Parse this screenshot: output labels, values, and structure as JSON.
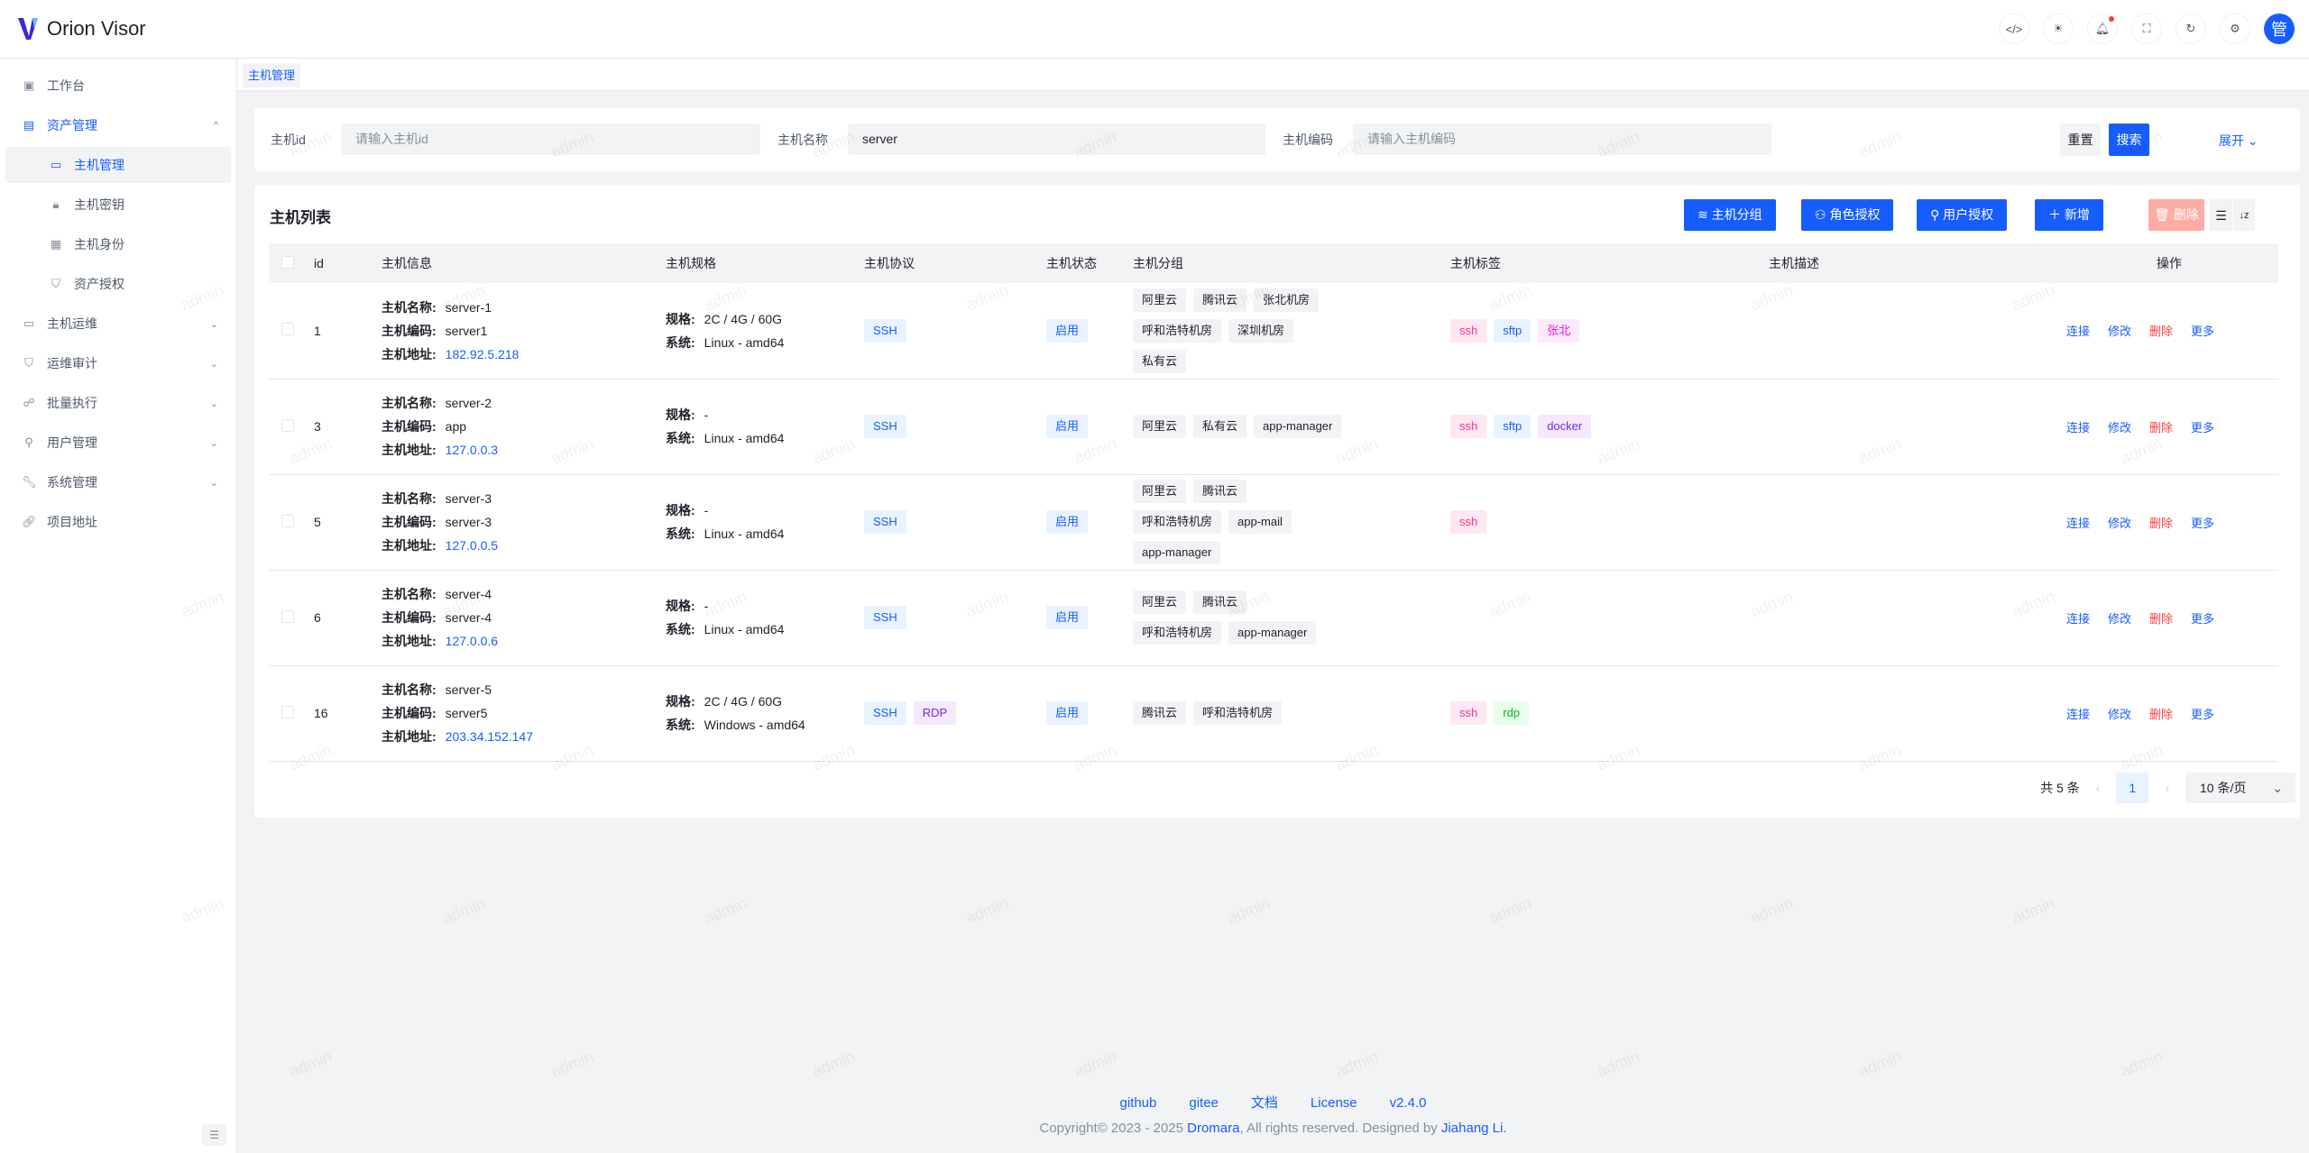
{
  "header": {
    "app_title": "Orion Visor",
    "avatar_text": "管",
    "icons": [
      "code-icon",
      "sun-icon",
      "bell-icon",
      "fullscreen-icon",
      "refresh-icon",
      "gear-icon"
    ],
    "has_notification": true
  },
  "sidebar": {
    "items": [
      {
        "label": "工作台",
        "icon": "dashboard-icon",
        "type": "top"
      },
      {
        "label": "资产管理",
        "icon": "database-icon",
        "type": "open",
        "chevron": "^"
      },
      {
        "label": "主机管理",
        "icon": "desktop-icon",
        "type": "active"
      },
      {
        "label": "主机密钥",
        "icon": "lock-icon",
        "type": "sub"
      },
      {
        "label": "主机身份",
        "icon": "id-card-icon",
        "type": "sub"
      },
      {
        "label": "资产授权",
        "icon": "shield-check-icon",
        "type": "sub"
      },
      {
        "label": "主机运维",
        "icon": "desktop-icon",
        "type": "top",
        "chevron": "⌄"
      },
      {
        "label": "运维审计",
        "icon": "shield-icon",
        "type": "top",
        "chevron": "⌄"
      },
      {
        "label": "批量执行",
        "icon": "cluster-icon",
        "type": "top",
        "chevron": "⌄"
      },
      {
        "label": "用户管理",
        "icon": "user-icon",
        "type": "top",
        "chevron": "⌄"
      },
      {
        "label": "系统管理",
        "icon": "wrench-icon",
        "type": "top",
        "chevron": "⌄"
      },
      {
        "label": "项目地址",
        "icon": "link-icon",
        "type": "top"
      }
    ]
  },
  "tab": {
    "label": "主机管理"
  },
  "search": {
    "id_label": "主机id",
    "id_placeholder": "请输入主机id",
    "name_label": "主机名称",
    "name_value": "server",
    "code_label": "主机编码",
    "code_placeholder": "请输入主机编码",
    "reset": "重置",
    "search": "搜索",
    "expand": "展开"
  },
  "table": {
    "title": "主机列表",
    "buttons": {
      "group": "主机分组",
      "role": "角色授权",
      "user": "用户授权",
      "add": "新增",
      "delete": "删除"
    },
    "columns": [
      "id",
      "主机信息",
      "主机规格",
      "主机协议",
      "主机状态",
      "主机分组",
      "主机标签",
      "主机描述",
      "操作"
    ],
    "info_labels": {
      "name": "主机名称:",
      "code": "主机编码:",
      "address": "主机地址:",
      "spec": "规格:",
      "os": "系统:"
    },
    "rows": [
      {
        "id": "1",
        "name": "server-1",
        "code": "server1",
        "address": "182.92.5.218",
        "spec": "2C / 4G / 60G",
        "os": "Linux - amd64",
        "protocols": [
          "SSH"
        ],
        "status": "启用",
        "groups": [
          "阿里云",
          "腾讯云",
          "张北机房",
          "呼和浩特机房",
          "深圳机房",
          "私有云"
        ],
        "tags": [
          {
            "text": "ssh",
            "color": "#f5319d",
            "bg": "#ffe8f1"
          },
          {
            "text": "sftp",
            "color": "#165dff",
            "bg": "#e8f3ff"
          },
          {
            "text": "张北",
            "color": "#d91ad9",
            "bg": "#ffe8fb"
          }
        ],
        "description": ""
      },
      {
        "id": "3",
        "name": "server-2",
        "code": "app",
        "address": "127.0.0.3",
        "spec": "-",
        "os": "Linux - amd64",
        "protocols": [
          "SSH"
        ],
        "status": "启用",
        "groups": [
          "阿里云",
          "私有云",
          "app-manager"
        ],
        "tags": [
          {
            "text": "ssh",
            "color": "#f5319d",
            "bg": "#ffe8f1"
          },
          {
            "text": "sftp",
            "color": "#165dff",
            "bg": "#e8f3ff"
          },
          {
            "text": "docker",
            "color": "#722ed1",
            "bg": "#f5e8ff"
          }
        ],
        "description": ""
      },
      {
        "id": "5",
        "name": "server-3",
        "code": "server-3",
        "address": "127.0.0.5",
        "spec": "-",
        "os": "Linux - amd64",
        "protocols": [
          "SSH"
        ],
        "status": "启用",
        "groups": [
          "阿里云",
          "腾讯云",
          "呼和浩特机房",
          "app-mail",
          "app-manager"
        ],
        "tags": [
          {
            "text": "ssh",
            "color": "#f5319d",
            "bg": "#ffe8f1"
          }
        ],
        "description": ""
      },
      {
        "id": "6",
        "name": "server-4",
        "code": "server-4",
        "address": "127.0.0.6",
        "spec": "-",
        "os": "Linux - amd64",
        "protocols": [
          "SSH"
        ],
        "status": "启用",
        "groups": [
          "阿里云",
          "腾讯云",
          "呼和浩特机房",
          "app-manager"
        ],
        "tags": [],
        "description": ""
      },
      {
        "id": "16",
        "name": "server-5",
        "code": "server5",
        "address": "203.34.152.147",
        "spec": "2C / 4G / 60G",
        "os": "Windows - amd64",
        "protocols": [
          "SSH",
          "RDP"
        ],
        "status": "启用",
        "groups": [
          "腾讯云",
          "呼和浩特机房"
        ],
        "tags": [
          {
            "text": "ssh",
            "color": "#f5319d",
            "bg": "#ffe8f1"
          },
          {
            "text": "rdp",
            "color": "#00b42a",
            "bg": "#e8ffea"
          }
        ],
        "description": ""
      }
    ],
    "actions": {
      "connect": "连接",
      "edit": "修改",
      "delete": "删除",
      "more": "更多"
    }
  },
  "pagination": {
    "total": "共 5 条",
    "current": "1",
    "page_size": "10 条/页"
  },
  "footer": {
    "links": [
      "github",
      "gitee",
      "文档",
      "License",
      "v2.4.0"
    ],
    "copy_prefix": "Copyright© 2023 - 2025 ",
    "org": "Dromara",
    "copy_mid": ", All rights reserved. Designed by ",
    "author": "Jiahang Li."
  },
  "watermark": "admin",
  "colors": {
    "primary": "#165dff",
    "danger": "#f53f3f",
    "danger_light": "#fbaca3"
  }
}
